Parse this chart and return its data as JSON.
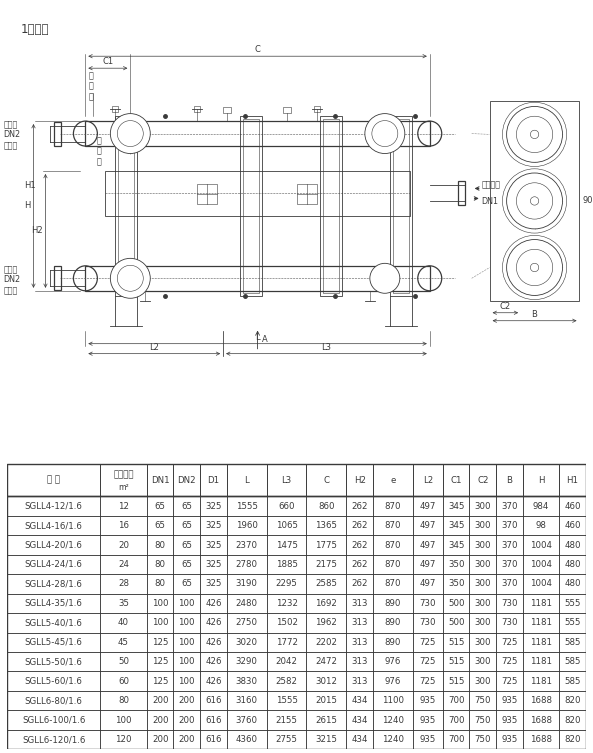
{
  "title": "1、臥式",
  "headers": [
    "型 号",
    "冷却面积\nm²",
    "DN1",
    "DN2",
    "D1",
    "L",
    "L3",
    "C",
    "H2",
    "e",
    "L2",
    "C1",
    "C2",
    "B",
    "H",
    "H1"
  ],
  "col_widths_rel": [
    14,
    7,
    4,
    4,
    4,
    6,
    6,
    6,
    4,
    6,
    4.5,
    4,
    4,
    4,
    5.5,
    4
  ],
  "rows": [
    [
      "SGLL4-12/1.6",
      "12",
      "65",
      "65",
      "325",
      "1555",
      "660",
      "860",
      "262",
      "870",
      "497",
      "345",
      "300",
      "370",
      "984",
      "460"
    ],
    [
      "SGLL4-16/1.6",
      "16",
      "65",
      "65",
      "325",
      "1960",
      "1065",
      "1365",
      "262",
      "870",
      "497",
      "345",
      "300",
      "370",
      "98",
      "460"
    ],
    [
      "SGLL4-20/1.6",
      "20",
      "80",
      "65",
      "325",
      "2370",
      "1475",
      "1775",
      "262",
      "870",
      "497",
      "345",
      "300",
      "370",
      "1004",
      "480"
    ],
    [
      "SGLL4-24/1.6",
      "24",
      "80",
      "65",
      "325",
      "2780",
      "1885",
      "2175",
      "262",
      "870",
      "497",
      "350",
      "300",
      "370",
      "1004",
      "480"
    ],
    [
      "SGLL4-28/1.6",
      "28",
      "80",
      "65",
      "325",
      "3190",
      "2295",
      "2585",
      "262",
      "870",
      "497",
      "350",
      "300",
      "370",
      "1004",
      "480"
    ],
    [
      "SGLL4-35/1.6",
      "35",
      "100",
      "100",
      "426",
      "2480",
      "1232",
      "1692",
      "313",
      "890",
      "730",
      "500",
      "300",
      "730",
      "1181",
      "555"
    ],
    [
      "SGLL5-40/1.6",
      "40",
      "100",
      "100",
      "426",
      "2750",
      "1502",
      "1962",
      "313",
      "890",
      "730",
      "500",
      "300",
      "730",
      "1181",
      "555"
    ],
    [
      "SGLL5-45/1.6",
      "45",
      "125",
      "100",
      "426",
      "3020",
      "1772",
      "2202",
      "313",
      "890",
      "725",
      "515",
      "300",
      "725",
      "1181",
      "585"
    ],
    [
      "SGLL5-50/1.6",
      "50",
      "125",
      "100",
      "426",
      "3290",
      "2042",
      "2472",
      "313",
      "976",
      "725",
      "515",
      "300",
      "725",
      "1181",
      "585"
    ],
    [
      "SGLL5-60/1.6",
      "60",
      "125",
      "100",
      "426",
      "3830",
      "2582",
      "3012",
      "313",
      "976",
      "725",
      "515",
      "300",
      "725",
      "1181",
      "585"
    ],
    [
      "SGLL6-80/1.6",
      "80",
      "200",
      "200",
      "616",
      "3160",
      "1555",
      "2015",
      "434",
      "1100",
      "935",
      "700",
      "750",
      "935",
      "1688",
      "820"
    ],
    [
      "SGLL6-100/1.6",
      "100",
      "200",
      "200",
      "616",
      "3760",
      "2155",
      "2615",
      "434",
      "1240",
      "935",
      "700",
      "750",
      "935",
      "1688",
      "820"
    ],
    [
      "SGLL6-120/1.6",
      "120",
      "200",
      "200",
      "616",
      "4360",
      "2755",
      "3215",
      "434",
      "1240",
      "935",
      "700",
      "750",
      "935",
      "1688",
      "820"
    ]
  ],
  "bg_color": "#ffffff",
  "line_color": "#3a3a3a",
  "dim_color": "#3a3a3a",
  "font_size_table": 6.2,
  "font_size_title": 8.5,
  "font_size_label": 5.8,
  "font_size_dim": 6.5
}
